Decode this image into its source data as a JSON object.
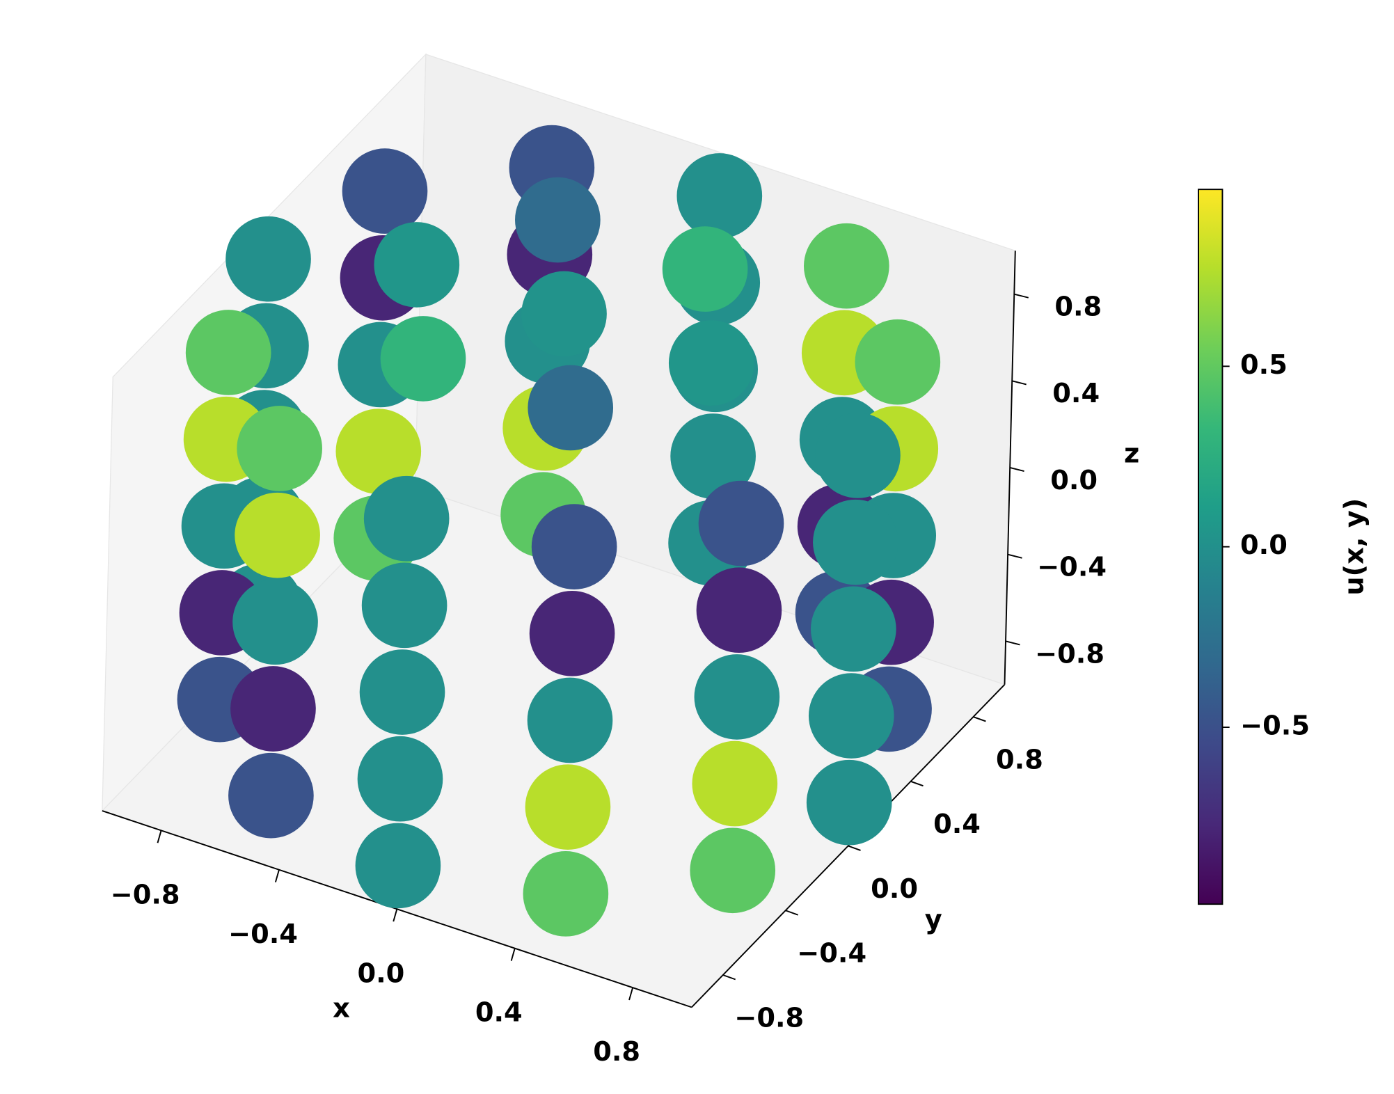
{
  "chart_data": {
    "type": "scatter3d",
    "x": [
      1,
      0.87,
      0.5,
      0,
      -0.5,
      -0.87,
      -1,
      -0.87,
      -0.5,
      0,
      0.5,
      0.87,
      1,
      0.87,
      0.5,
      0,
      -0.5,
      -0.87,
      -1,
      -0.87,
      -0.5,
      0,
      0.5,
      0.87,
      1,
      0.87,
      0.5,
      0,
      -0.5,
      -0.87,
      -1,
      -0.87,
      -0.5,
      0,
      0.5,
      0.87,
      1,
      0.87,
      0.5,
      0,
      -0.5,
      -0.87,
      -1,
      -0.87,
      -0.5,
      0,
      0.5,
      0.87,
      1,
      0.87,
      0.5,
      0,
      -0.5,
      -0.87,
      -1,
      -0.87,
      -0.5,
      0,
      0.5,
      0.87,
      0,
      0.5,
      0.25,
      -0.25,
      -0.5,
      -0.25,
      0.25
    ],
    "y": [
      0,
      0.5,
      0.87,
      1,
      0.87,
      0.5,
      0,
      -0.5,
      -0.87,
      -1,
      -0.87,
      -0.5,
      0,
      0.5,
      0.87,
      1,
      0.87,
      0.5,
      0,
      -0.5,
      -0.87,
      -1,
      -0.87,
      -0.5,
      0,
      0.5,
      0.87,
      1,
      0.87,
      0.5,
      0,
      -0.5,
      -0.87,
      -1,
      -0.87,
      -0.5,
      0,
      0.5,
      0.87,
      1,
      0.87,
      0.5,
      0,
      -0.5,
      -0.87,
      -1,
      -0.87,
      -0.5,
      0,
      0.5,
      0.87,
      1,
      0.87,
      0.5,
      0,
      -0.5,
      -0.87,
      -1,
      -0.87,
      -0.5,
      0,
      0,
      0.43,
      0.43,
      0,
      -0.43,
      -0.43
    ],
    "z": [
      -0.8,
      -0.8,
      -0.8,
      -0.8,
      -0.8,
      -0.8,
      -0.8,
      -0.8,
      -0.8,
      -0.8,
      -0.8,
      -0.8,
      -0.4,
      -0.4,
      -0.4,
      -0.4,
      -0.4,
      -0.4,
      -0.4,
      -0.4,
      -0.4,
      -0.4,
      -0.4,
      -0.4,
      0,
      0,
      0,
      0,
      0,
      0,
      0,
      0,
      0,
      0,
      0,
      0,
      0.4,
      0.4,
      0.4,
      0.4,
      0.4,
      0.4,
      0.4,
      0.4,
      0.4,
      0.4,
      0.4,
      0.4,
      0.8,
      0.8,
      0.8,
      0.8,
      0.8,
      0.8,
      0.8,
      0.8,
      0.8,
      0.8,
      0.8,
      0.8,
      1,
      1,
      1,
      1,
      1,
      1,
      1
    ],
    "values": [
      0,
      -0.48,
      -0.48,
      0,
      0.48,
      0.48,
      0,
      -0.48,
      -0.48,
      0,
      0.48,
      0.48,
      0,
      -0.78,
      -0.78,
      0,
      0.78,
      0.78,
      0,
      -0.78,
      -0.78,
      0,
      0.78,
      0.78,
      0,
      0,
      0,
      0,
      0,
      0,
      0,
      0,
      0,
      0,
      0,
      0,
      0,
      0.78,
      0.78,
      0,
      -0.78,
      -0.78,
      0,
      0.78,
      0.78,
      0,
      -0.78,
      -0.78,
      0,
      0.48,
      0.48,
      0,
      -0.48,
      -0.48,
      0,
      0.48,
      0.48,
      0,
      -0.48,
      -0.48,
      0.02,
      0.05,
      0.3,
      -0.3,
      0.05,
      0.3,
      -0.3
    ],
    "colormap": "viridis",
    "clim": [
      -0.99,
      0.99
    ],
    "xlabel": "x",
    "ylabel": "y",
    "zlabel": "z",
    "colorbar_label": "u(x, y)",
    "xlim": [
      -1,
      1
    ],
    "ylim": [
      -1,
      1
    ],
    "zlim": [
      -1,
      1
    ],
    "xticks": [
      {
        "value": -0.8,
        "label": "−0.8"
      },
      {
        "value": -0.4,
        "label": "−0.4"
      },
      {
        "value": 0,
        "label": "0.0"
      },
      {
        "value": 0.4,
        "label": "0.4"
      },
      {
        "value": 0.8,
        "label": "0.8"
      }
    ],
    "yticks": [
      {
        "value": -0.8,
        "label": "−0.8"
      },
      {
        "value": -0.4,
        "label": "−0.4"
      },
      {
        "value": 0,
        "label": "0.0"
      },
      {
        "value": 0.4,
        "label": "0.4"
      },
      {
        "value": 0.8,
        "label": "0.8"
      }
    ],
    "zticks": [
      {
        "value": -0.8,
        "label": "−0.8"
      },
      {
        "value": -0.4,
        "label": "−0.4"
      },
      {
        "value": 0,
        "label": "0.0"
      },
      {
        "value": 0.4,
        "label": "0.4"
      },
      {
        "value": 0.8,
        "label": "0.8"
      }
    ],
    "colorbar_ticks": [
      {
        "value": -0.5,
        "label": "−0.5"
      },
      {
        "value": 0,
        "label": "0.0"
      },
      {
        "value": 0.5,
        "label": "0.5"
      }
    ]
  }
}
